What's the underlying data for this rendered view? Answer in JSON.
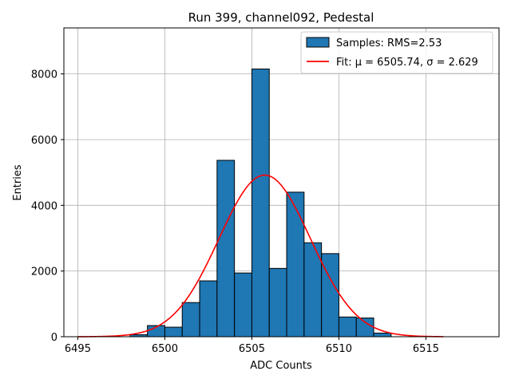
{
  "chart_data": {
    "type": "bar",
    "title": "Run 399, channel092, Pedestal",
    "xlabel": "ADC Counts",
    "ylabel": "Entries",
    "xlim": [
      6494.2,
      6519.2
    ],
    "ylim": [
      0,
      9400
    ],
    "xticks": [
      6495,
      6500,
      6505,
      6510,
      6515
    ],
    "yticks": [
      0,
      2000,
      4000,
      6000,
      8000
    ],
    "grid": true,
    "legend_position": "top-right",
    "colors": {
      "bars": "#1f77b4",
      "bar_edge": "#000000",
      "fit": "#ff0000",
      "grid": "#b0b0b0"
    },
    "histogram": {
      "name": "Samples: RMS=2.53",
      "bin_edges": [
        6498,
        6499,
        6500,
        6501,
        6502,
        6503,
        6504,
        6505,
        6506,
        6507,
        6508,
        6509,
        6510,
        6511,
        6512,
        6513
      ],
      "counts": [
        60,
        340,
        290,
        1040,
        1700,
        5370,
        1940,
        8150,
        2080,
        4400,
        2860,
        2530,
        600,
        570,
        110
      ]
    },
    "fit": {
      "name": "Fit: μ = 6505.74, σ = 2.629",
      "mu": 6505.74,
      "sigma": 2.629,
      "amplitude": 4920,
      "x_range": [
        6495,
        6516
      ]
    }
  }
}
